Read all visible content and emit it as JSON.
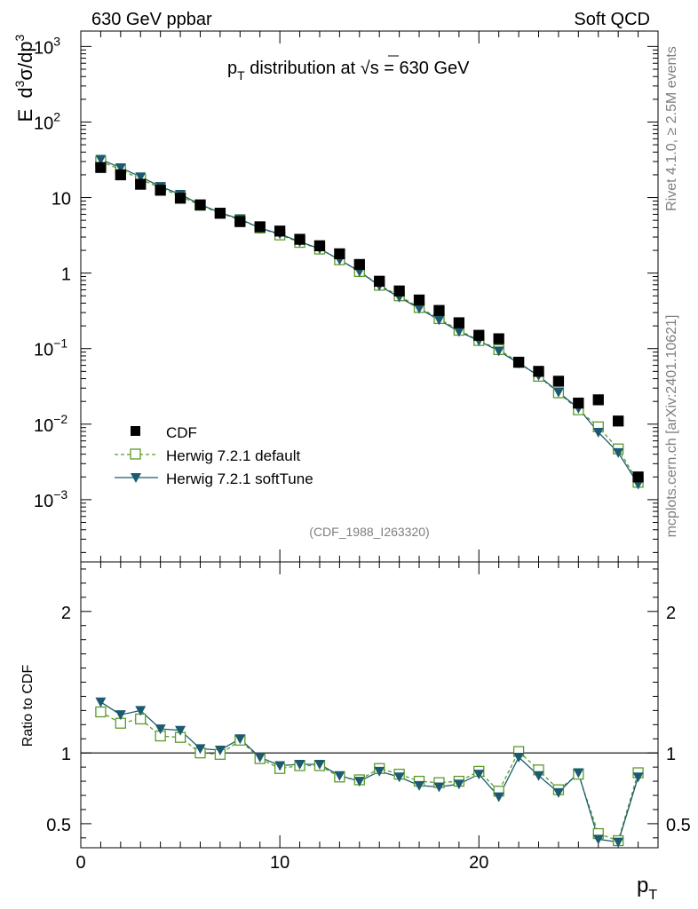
{
  "header": {
    "left": "630 GeV ppbar",
    "right": "Soft QCD"
  },
  "side_labels": {
    "rivet": "Rivet 4.1.0, ≥ 2.5M events",
    "mcplots": "mcplots.cern.ch [arXiv:2401.10621]"
  },
  "chart_data": [
    {
      "type": "scatter",
      "title_main": "p",
      "title_sub": "T",
      "title_rest": " distribution at ",
      "title_sqrt": "s",
      "title_tail": " = 630 GeV",
      "analysis_id": "(CDF_1988_I263320)",
      "xlabel": "p",
      "xlabel_sub": "T",
      "ylabel_pre": "E",
      "ylabel_d3": "d",
      "ylabel_rest": "σ/dp",
      "ylabel_sup1": "3",
      "ylabel_sup2": "3",
      "x_range": [
        0,
        29
      ],
      "y_log_range": [
        0.00015,
        1600
      ],
      "x_ticks": [
        "0",
        "10",
        "20"
      ],
      "x_tick_values": [
        0,
        10,
        20
      ],
      "y_ticks": [
        {
          "value": 1000,
          "base": "10",
          "exp": "3"
        },
        {
          "value": 100,
          "base": "10",
          "exp": "2"
        },
        {
          "value": 10,
          "base": "10",
          "exp": ""
        },
        {
          "value": 1,
          "base": "1",
          "exp": ""
        },
        {
          "value": 0.1,
          "base": "10",
          "exp": "−1"
        },
        {
          "value": 0.01,
          "base": "10",
          "exp": "−2"
        },
        {
          "value": 0.001,
          "base": "10",
          "exp": "−3"
        }
      ],
      "x": [
        1,
        2,
        3,
        4,
        5,
        6,
        7,
        8,
        9,
        10,
        11,
        12,
        13,
        14,
        15,
        16,
        17,
        18,
        19,
        20,
        21,
        22,
        23,
        24,
        25,
        26,
        27,
        28
      ],
      "series": [
        {
          "name": "CDF",
          "color": "#000000",
          "values": [
            25,
            20,
            15,
            12.5,
            9.8,
            8,
            6.2,
            4.8,
            4.1,
            3.6,
            2.8,
            2.3,
            1.8,
            1.3,
            0.78,
            0.58,
            0.44,
            0.32,
            0.22,
            0.15,
            0.135,
            0.066,
            0.05,
            0.037,
            0.019,
            0.021,
            0.011,
            0.002
          ]
        },
        {
          "name": "Herwig 7.2.1 default",
          "color": "#5a9b27",
          "values": [
            30,
            23.5,
            17.5,
            13.5,
            10.4,
            7.9,
            6.2,
            5.1,
            3.95,
            3.2,
            2.55,
            2.08,
            1.5,
            1.05,
            0.69,
            0.5,
            0.35,
            0.25,
            0.175,
            0.128,
            0.097,
            0.066,
            0.043,
            0.026,
            0.0155,
            0.0092,
            0.0047,
            0.0017
          ]
        },
        {
          "name": "Herwig 7.2.1 softTune",
          "color": "#1c5a71",
          "values": [
            32,
            24.8,
            18.8,
            14,
            11,
            8.1,
            6.3,
            5.2,
            3.95,
            3.3,
            2.6,
            2.1,
            1.5,
            1.05,
            0.68,
            0.48,
            0.34,
            0.24,
            0.168,
            0.127,
            0.093,
            0.064,
            0.044,
            0.0265,
            0.0162,
            0.0078,
            0.0042,
            0.0016
          ]
        }
      ],
      "legend": [
        "CDF",
        "Herwig 7.2.1 default",
        "Herwig 7.2.1 softTune"
      ],
      "legend_position": "bottom-left"
    },
    {
      "type": "line",
      "ylabel": "Ratio to CDF",
      "y_range": [
        0.33,
        2.35
      ],
      "y_ticks_left": [
        "2",
        "1",
        "0.5"
      ],
      "y_ticks_right": [
        "2",
        "1",
        "0.5"
      ],
      "y_tick_values": [
        2,
        1,
        0.5
      ],
      "reference_line": 1,
      "x": [
        1,
        2,
        3,
        4,
        5,
        6,
        7,
        8,
        9,
        10,
        11,
        12,
        13,
        14,
        15,
        16,
        17,
        18,
        19,
        20,
        21,
        22,
        23,
        24,
        25,
        26,
        27,
        28
      ],
      "series": [
        {
          "name": "Herwig 7.2.1 default",
          "color": "#5a9b27",
          "values": [
            1.29,
            1.21,
            1.24,
            1.12,
            1.11,
            1.0,
            0.99,
            1.09,
            0.96,
            0.89,
            0.91,
            0.91,
            0.83,
            0.81,
            0.89,
            0.85,
            0.8,
            0.79,
            0.8,
            0.87,
            0.73,
            1.01,
            0.88,
            0.74,
            0.85,
            0.43,
            0.38,
            0.86
          ]
        },
        {
          "name": "Herwig 7.2.1 softTune",
          "color": "#1c5a71",
          "values": [
            1.36,
            1.27,
            1.3,
            1.17,
            1.16,
            1.03,
            1.02,
            1.1,
            0.97,
            0.91,
            0.92,
            0.92,
            0.84,
            0.8,
            0.87,
            0.83,
            0.77,
            0.76,
            0.78,
            0.85,
            0.69,
            0.97,
            0.84,
            0.72,
            0.86,
            0.39,
            0.37,
            0.83
          ]
        }
      ]
    }
  ]
}
